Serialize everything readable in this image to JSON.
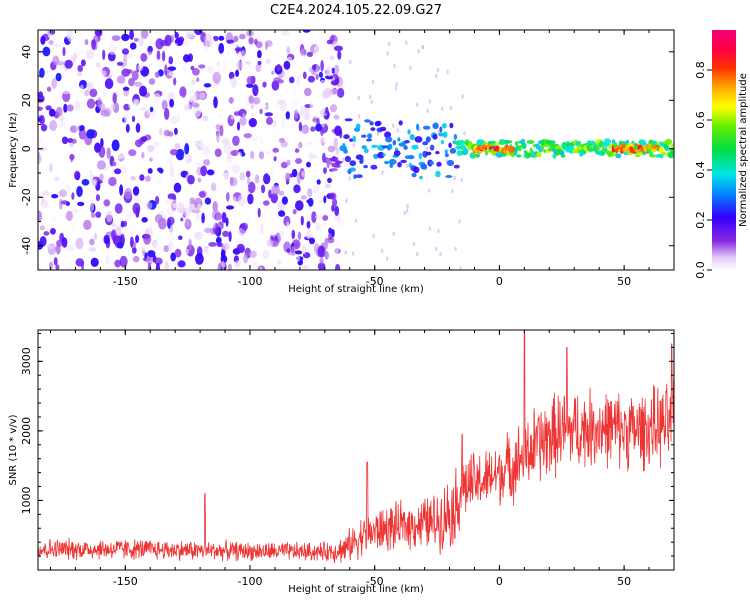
{
  "title": "C2E4.2024.105.22.09.G27",
  "chart_data": [
    {
      "type": "heatmap",
      "xlabel": "Height of straight line (km)",
      "ylabel": "Frequency (Hz)",
      "xlim": [
        -185,
        70
      ],
      "ylim": [
        -50,
        49
      ],
      "xticks": [
        -150,
        -100,
        -50,
        0,
        50
      ],
      "yticks": [
        -40,
        -20,
        0,
        20,
        40
      ],
      "colorbar": {
        "label": "Normalized spectral amplitude",
        "range": [
          0,
          0.96
        ],
        "ticks": [
          "0.0",
          "0.2",
          "0.4",
          "0.6",
          "0.8"
        ],
        "colormap": "rainbow (purple-blue-cyan-green-yellow-orange-red-magenta)"
      },
      "description_points": {
        "noise_region_x": [
          -185,
          -63
        ],
        "noise_amplitude": [
          0.0,
          0.25
        ],
        "signal_line_frequency_hz": 0,
        "signal_segments": [
          {
            "x": [
              -70,
              -64
            ],
            "y_spread": [
              -9,
              -4
            ],
            "amplitude": 0.15
          },
          {
            "x": [
              -63,
              -17
            ],
            "y_spread": [
              -12,
              12
            ],
            "amplitude": 0.35
          },
          {
            "x": [
              -17,
              70
            ],
            "y_spread": [
              -3,
              3
            ],
            "amplitude": 0.6
          },
          {
            "x": [
              -10,
              5
            ],
            "y_spread": [
              -1,
              1
            ],
            "amplitude": 0.9
          },
          {
            "x": [
              45,
              65
            ],
            "y_spread": [
              -1,
              1
            ],
            "amplitude": 0.85
          }
        ]
      }
    },
    {
      "type": "line",
      "xlabel": "Height of straight line (km)",
      "ylabel": "SNR (10 * v/v)",
      "xlim": [
        -185,
        70
      ],
      "ylim": [
        0,
        3450
      ],
      "xticks": [
        -150,
        -100,
        -50,
        0,
        50
      ],
      "yticks": [
        1000,
        2000,
        3000
      ],
      "color": "#ef3232",
      "envelope": {
        "x": [
          -185,
          -150,
          -100,
          -70,
          -62,
          -55,
          -45,
          -35,
          -25,
          -18,
          -14,
          -5,
          5,
          15,
          25,
          40,
          55,
          70
        ],
        "mean": [
          300,
          300,
          270,
          260,
          300,
          500,
          600,
          650,
          700,
          900,
          1200,
          1300,
          1500,
          1800,
          2000,
          2050,
          2000,
          2100
        ],
        "spread": [
          180,
          180,
          160,
          160,
          250,
          350,
          400,
          400,
          500,
          650,
          550,
          500,
          600,
          700,
          700,
          650,
          650,
          700
        ]
      },
      "peaks": [
        {
          "x": -118,
          "y": 1100
        },
        {
          "x": -53,
          "y": 1550
        },
        {
          "x": -15,
          "y": 1950
        },
        {
          "x": 10,
          "y": 3420
        },
        {
          "x": 27,
          "y": 3200
        },
        {
          "x": 69,
          "y": 3250
        }
      ]
    }
  ]
}
